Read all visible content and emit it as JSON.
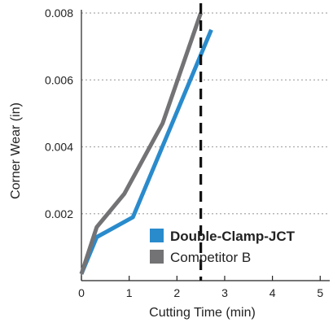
{
  "chart_data": {
    "type": "line",
    "title": "",
    "xlabel": "Cutting Time (min)",
    "ylabel": "Corner Wear (in)",
    "xlim": [
      0,
      5.2
    ],
    "ylim": [
      0,
      0.008
    ],
    "x_ticks": [
      "0",
      "1",
      "2",
      "3",
      "4",
      "5"
    ],
    "y_ticks": [
      "0.002",
      "0.004",
      "0.006",
      "0.008"
    ],
    "x_tick_values": [
      0,
      1,
      2,
      3,
      4,
      5
    ],
    "y_tick_values": [
      0.002,
      0.004,
      0.006,
      0.008
    ],
    "grid": "horizontal-dotted",
    "legend_position": "bottom-right",
    "reference_line": {
      "x": 2.5,
      "style": "dashed",
      "color": "#111111"
    },
    "series": [
      {
        "name": "Double-Clamp-JCT",
        "color": "#2a8bcc",
        "bold_label": true,
        "x": [
          0,
          0.32,
          1.08,
          2.72
        ],
        "y": [
          0.0002,
          0.0013,
          0.0019,
          0.0075
        ]
      },
      {
        "name": "Competitor B",
        "color": "#737376",
        "bold_label": false,
        "x": [
          0,
          0.32,
          0.9,
          1.7,
          2.5
        ],
        "y": [
          0.0002,
          0.0016,
          0.0026,
          0.0047,
          0.008
        ]
      }
    ]
  }
}
